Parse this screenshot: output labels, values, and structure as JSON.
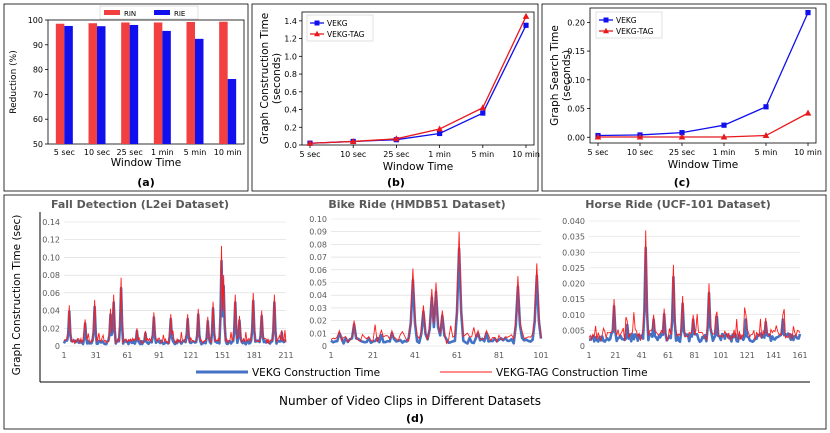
{
  "chart_data": [
    {
      "type": "bar",
      "caption": "(a)",
      "categories": [
        "5 sec",
        "10 sec",
        "25 sec",
        "1 min",
        "5 min",
        "10 min"
      ],
      "series": [
        {
          "name": "RIN",
          "color": "#f24040",
          "values": [
            98.5,
            98.7,
            99.0,
            99.0,
            99.2,
            99.3
          ]
        },
        {
          "name": "RIE",
          "color": "#1010ee",
          "values": [
            97.6,
            97.5,
            98.0,
            95.6,
            92.4,
            76.2
          ]
        }
      ],
      "xlabel": "Window Time",
      "ylabel": "Reduction (%)",
      "ylim": [
        50,
        100
      ],
      "yticks": [
        50,
        60,
        70,
        80,
        90,
        100
      ],
      "legend": "top-center",
      "grid": false
    },
    {
      "type": "line",
      "caption": "(b)",
      "categories": [
        "5 sec",
        "10 sec",
        "25 sec",
        "1 min",
        "5 min",
        "10 min"
      ],
      "series": [
        {
          "name": "VEKG",
          "color": "#1010ee",
          "marker": "square",
          "values": [
            0.02,
            0.04,
            0.06,
            0.13,
            0.36,
            1.35
          ]
        },
        {
          "name": "VEKG-TAG",
          "color": "#e8191d",
          "marker": "triangle",
          "values": [
            0.02,
            0.04,
            0.07,
            0.18,
            0.42,
            1.45
          ]
        }
      ],
      "xlabel": "Window Time",
      "ylabel": "Graph Construction Time\n(seconds)",
      "ylim": [
        0,
        1.5
      ],
      "yticks": [
        0.0,
        0.2,
        0.4,
        0.6,
        0.8,
        1.0,
        1.2,
        1.4
      ],
      "legend": "top-left",
      "grid": false
    },
    {
      "type": "line",
      "caption": "(c)",
      "categories": [
        "5 sec",
        "10 sec",
        "25 sec",
        "1 min",
        "5 min",
        "10 min"
      ],
      "series": [
        {
          "name": "VEKG",
          "color": "#1010ee",
          "marker": "square",
          "values": [
            0.003,
            0.004,
            0.008,
            0.021,
            0.053,
            0.217
          ]
        },
        {
          "name": "VEKG-TAG",
          "color": "#e8191d",
          "marker": "triangle",
          "values": [
            0.0005,
            0.0005,
            0.0005,
            0.0005,
            0.003,
            0.042
          ]
        }
      ],
      "xlabel": "Window Time",
      "ylabel": "Graph Search Time\n(seconds)",
      "ylim": [
        -0.01,
        0.225
      ],
      "yticks": [
        0.0,
        0.05,
        0.1,
        0.15,
        0.2
      ],
      "legend": "top-left",
      "grid": false
    },
    {
      "type": "line",
      "caption": "(d)",
      "title": "Fall Detection (L2ei Dataset)",
      "n": 211,
      "ylim": [
        0,
        0.14
      ],
      "yticks": [
        0,
        0.02,
        0.04,
        0.06,
        0.08,
        0.1,
        0.12,
        0.14
      ],
      "xticks": [
        1,
        31,
        61,
        91,
        121,
        151,
        181,
        211
      ],
      "base": 0.004,
      "peaks": [
        [
          6,
          0.046
        ],
        [
          21,
          0.03
        ],
        [
          30,
          0.052
        ],
        [
          45,
          0.042
        ],
        [
          48,
          0.058
        ],
        [
          55,
          0.077
        ],
        [
          70,
          0.02
        ],
        [
          78,
          0.017
        ],
        [
          86,
          0.038
        ],
        [
          102,
          0.036
        ],
        [
          118,
          0.036
        ],
        [
          128,
          0.042
        ],
        [
          137,
          0.033
        ],
        [
          142,
          0.05
        ],
        [
          150,
          0.113
        ],
        [
          152,
          0.08
        ],
        [
          163,
          0.058
        ],
        [
          167,
          0.034
        ],
        [
          180,
          0.06
        ],
        [
          188,
          0.04
        ],
        [
          200,
          0.058
        ],
        [
          207,
          0.018
        ]
      ],
      "series": [
        {
          "name": "VEKG Construction Time"
        },
        {
          "name": "VEKG-TAG Construction Time"
        }
      ],
      "grid": true
    },
    {
      "type": "line",
      "title": "Bike Ride (HMDB51 Dataset)",
      "n": 101,
      "ylim": [
        0,
        0.1
      ],
      "yticks": [
        0,
        0.01,
        0.02,
        0.03,
        0.04,
        0.05,
        0.06,
        0.07,
        0.08,
        0.09,
        0.1
      ],
      "xticks": [
        1,
        21,
        41,
        61,
        81,
        101
      ],
      "base": 0.004,
      "peaks": [
        [
          5,
          0.012
        ],
        [
          12,
          0.02
        ],
        [
          25,
          0.01
        ],
        [
          30,
          0.012
        ],
        [
          40,
          0.061
        ],
        [
          45,
          0.032
        ],
        [
          49,
          0.045
        ],
        [
          51,
          0.05
        ],
        [
          54,
          0.028
        ],
        [
          62,
          0.09
        ],
        [
          71,
          0.012
        ],
        [
          75,
          0.012
        ],
        [
          90,
          0.055
        ],
        [
          99,
          0.065
        ]
      ],
      "grid": true
    },
    {
      "type": "line",
      "title": "Horse Ride (UCF-101 Dataset)",
      "n": 161,
      "ylim": [
        0,
        0.04
      ],
      "yticks": [
        0,
        0.005,
        0.01,
        0.015,
        0.02,
        0.025,
        0.03,
        0.035,
        0.04
      ],
      "xticks": [
        1,
        21,
        41,
        61,
        81,
        101,
        121,
        141,
        161
      ],
      "base": 0.0025,
      "peaks": [
        [
          20,
          0.015
        ],
        [
          30,
          0.008
        ],
        [
          44,
          0.037
        ],
        [
          50,
          0.01
        ],
        [
          58,
          0.012
        ],
        [
          65,
          0.026
        ],
        [
          72,
          0.016
        ],
        [
          80,
          0.01
        ],
        [
          92,
          0.02
        ],
        [
          98,
          0.011
        ],
        [
          120,
          0.01
        ],
        [
          135,
          0.009
        ],
        [
          148,
          0.01
        ]
      ],
      "grid": true
    }
  ],
  "shared": {
    "ylabel_d": "Graph Construction Time (sec)",
    "xlabel_d": "Number of Video Clips in Different Datasets",
    "legend_d": [
      "VEKG Construction Time",
      "VEKG-TAG Construction Time"
    ],
    "colors": {
      "vekg": "#4472c4",
      "tag": "#ff1a1a"
    }
  }
}
